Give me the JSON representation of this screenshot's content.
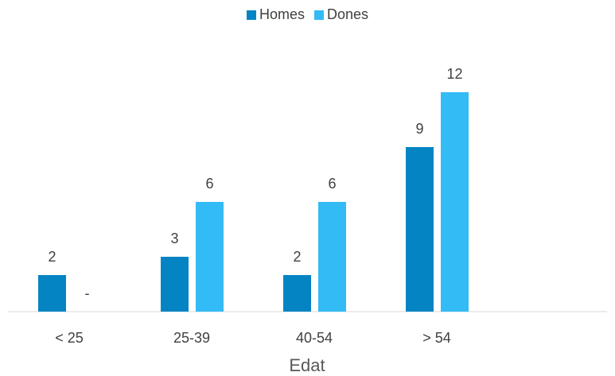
{
  "chart_data": {
    "type": "bar",
    "categories": [
      "< 25",
      "25-39",
      "40-54",
      "> 54"
    ],
    "series": [
      {
        "name": "Homes",
        "values": [
          2,
          3,
          2,
          9
        ],
        "labels": [
          "2",
          "3",
          "2",
          "9"
        ],
        "color": "#0584C4"
      },
      {
        "name": "Dones",
        "values": [
          0,
          6,
          6,
          12
        ],
        "labels": [
          "-",
          "6",
          "6",
          "12"
        ],
        "color": "#33BBF5"
      }
    ],
    "title": "",
    "xlabel": "Edat",
    "ylabel": "",
    "ylim": [
      0,
      14
    ],
    "grid": false,
    "legend": "top-center"
  }
}
